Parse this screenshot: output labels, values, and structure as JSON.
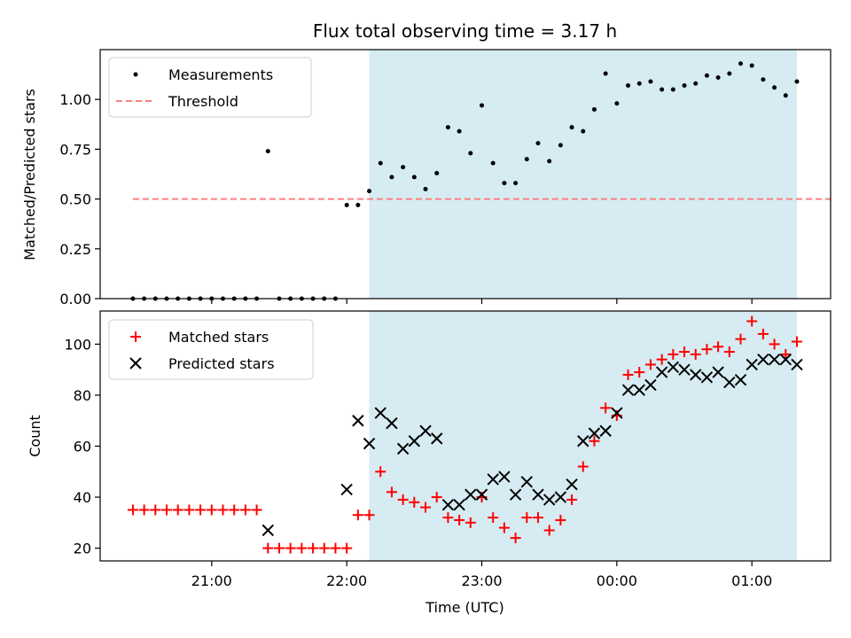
{
  "chart_data": [
    {
      "type": "scatter",
      "title": "Flux total observing time = 3.17 h",
      "ylabel": "Matched/Predicted stars",
      "ylim": [
        0,
        1.25
      ],
      "y_ticks": [
        "0.00",
        "0.25",
        "0.50",
        "0.75",
        "1.00"
      ],
      "legend": {
        "placement": "top-left",
        "entries": [
          "Measurements",
          "Threshold"
        ]
      },
      "threshold": {
        "value": 0.5,
        "x_start": "20:25",
        "x_end": "01:35",
        "color": "#ff7f7f"
      },
      "shaded_interval": {
        "x_start": "22:10",
        "x_end": "01:20",
        "color": "#add8e6"
      },
      "series": [
        {
          "name": "Measurements",
          "color": "#000000",
          "x": [
            "20:25",
            "20:30",
            "20:35",
            "20:40",
            "20:45",
            "20:50",
            "20:55",
            "21:00",
            "21:05",
            "21:10",
            "21:15",
            "21:20",
            "21:25",
            "21:30",
            "21:35",
            "21:40",
            "21:45",
            "21:50",
            "21:55",
            "22:00",
            "22:05",
            "22:10",
            "22:15",
            "22:20",
            "22:25",
            "22:30",
            "22:35",
            "22:40",
            "22:45",
            "22:50",
            "22:55",
            "23:00",
            "23:05",
            "23:10",
            "23:15",
            "23:20",
            "23:25",
            "23:30",
            "23:35",
            "23:40",
            "23:45",
            "23:50",
            "23:55",
            "00:00",
            "00:05",
            "00:10",
            "00:15",
            "00:20",
            "00:25",
            "00:30",
            "00:35",
            "00:40",
            "00:45",
            "00:50",
            "00:55",
            "01:00",
            "01:05",
            "01:10",
            "01:15",
            "01:20"
          ],
          "y": [
            0,
            0,
            0,
            0,
            0,
            0,
            0,
            0,
            0,
            0,
            0,
            0,
            0.74,
            0,
            0,
            0,
            0,
            0,
            0,
            0.47,
            0.47,
            0.54,
            0.68,
            0.61,
            0.66,
            0.61,
            0.55,
            0.63,
            0.86,
            0.84,
            0.73,
            0.97,
            0.68,
            0.58,
            0.58,
            0.7,
            0.78,
            0.69,
            0.77,
            0.86,
            0.84,
            0.95,
            1.13,
            0.98,
            1.07,
            1.08,
            1.09,
            1.05,
            1.05,
            1.07,
            1.08,
            1.12,
            1.11,
            1.13,
            1.18,
            1.17,
            1.1,
            1.06,
            1.02,
            1.09
          ]
        }
      ]
    },
    {
      "type": "scatter",
      "xlabel": "Time (UTC)",
      "ylabel": "Count",
      "ylim": [
        15,
        113
      ],
      "x_ticks": [
        "21:00",
        "22:00",
        "23:00",
        "00:00",
        "01:00"
      ],
      "y_ticks": [
        "20",
        "40",
        "60",
        "80",
        "100"
      ],
      "legend": {
        "placement": "top-left",
        "entries": [
          "Matched stars",
          "Predicted stars"
        ]
      },
      "shaded_interval": {
        "x_start": "22:10",
        "x_end": "01:20",
        "color": "#add8e6"
      },
      "series": [
        {
          "name": "Matched stars",
          "marker": "+",
          "color": "#ff0000",
          "x": [
            "20:25",
            "20:30",
            "20:35",
            "20:40",
            "20:45",
            "20:50",
            "20:55",
            "21:00",
            "21:05",
            "21:10",
            "21:15",
            "21:20",
            "21:25",
            "21:30",
            "21:35",
            "21:40",
            "21:45",
            "21:50",
            "21:55",
            "22:00",
            "22:05",
            "22:10",
            "22:15",
            "22:20",
            "22:25",
            "22:30",
            "22:35",
            "22:40",
            "22:45",
            "22:50",
            "22:55",
            "23:00",
            "23:05",
            "23:10",
            "23:15",
            "23:20",
            "23:25",
            "23:30",
            "23:35",
            "23:40",
            "23:45",
            "23:50",
            "23:55",
            "00:00",
            "00:05",
            "00:10",
            "00:15",
            "00:20",
            "00:25",
            "00:30",
            "00:35",
            "00:40",
            "00:45",
            "00:50",
            "00:55",
            "01:00",
            "01:05",
            "01:10",
            "01:15",
            "01:20"
          ],
          "y": [
            35,
            35,
            35,
            35,
            35,
            35,
            35,
            35,
            35,
            35,
            35,
            35,
            20,
            20,
            20,
            20,
            20,
            20,
            20,
            20,
            33,
            33,
            50,
            42,
            39,
            38,
            36,
            40,
            32,
            31,
            30,
            40,
            32,
            28,
            24,
            32,
            32,
            27,
            31,
            39,
            52,
            62,
            75,
            72,
            88,
            89,
            92,
            94,
            96,
            97,
            96,
            98,
            99,
            97,
            102,
            109,
            104,
            100,
            96,
            101
          ]
        },
        {
          "name": "Predicted stars",
          "marker": "x",
          "color": "#000000",
          "x": [
            "21:25",
            "22:00",
            "22:05",
            "22:10",
            "22:15",
            "22:20",
            "22:25",
            "22:30",
            "22:35",
            "22:40",
            "22:45",
            "22:50",
            "22:55",
            "23:00",
            "23:05",
            "23:10",
            "23:15",
            "23:20",
            "23:25",
            "23:30",
            "23:35",
            "23:40",
            "23:45",
            "23:50",
            "23:55",
            "00:00",
            "00:05",
            "00:10",
            "00:15",
            "00:20",
            "00:25",
            "00:30",
            "00:35",
            "00:40",
            "00:45",
            "00:50",
            "00:55",
            "01:00",
            "01:05",
            "01:10",
            "01:15",
            "01:20"
          ],
          "y": [
            27,
            43,
            70,
            61,
            73,
            69,
            59,
            62,
            66,
            63,
            37,
            37,
            41,
            41,
            47,
            48,
            41,
            46,
            41,
            39,
            40,
            45,
            62,
            65,
            66,
            73,
            82,
            82,
            84,
            89,
            91,
            90,
            88,
            87,
            89,
            85,
            86,
            92,
            94,
            94,
            94,
            92
          ]
        }
      ]
    }
  ]
}
